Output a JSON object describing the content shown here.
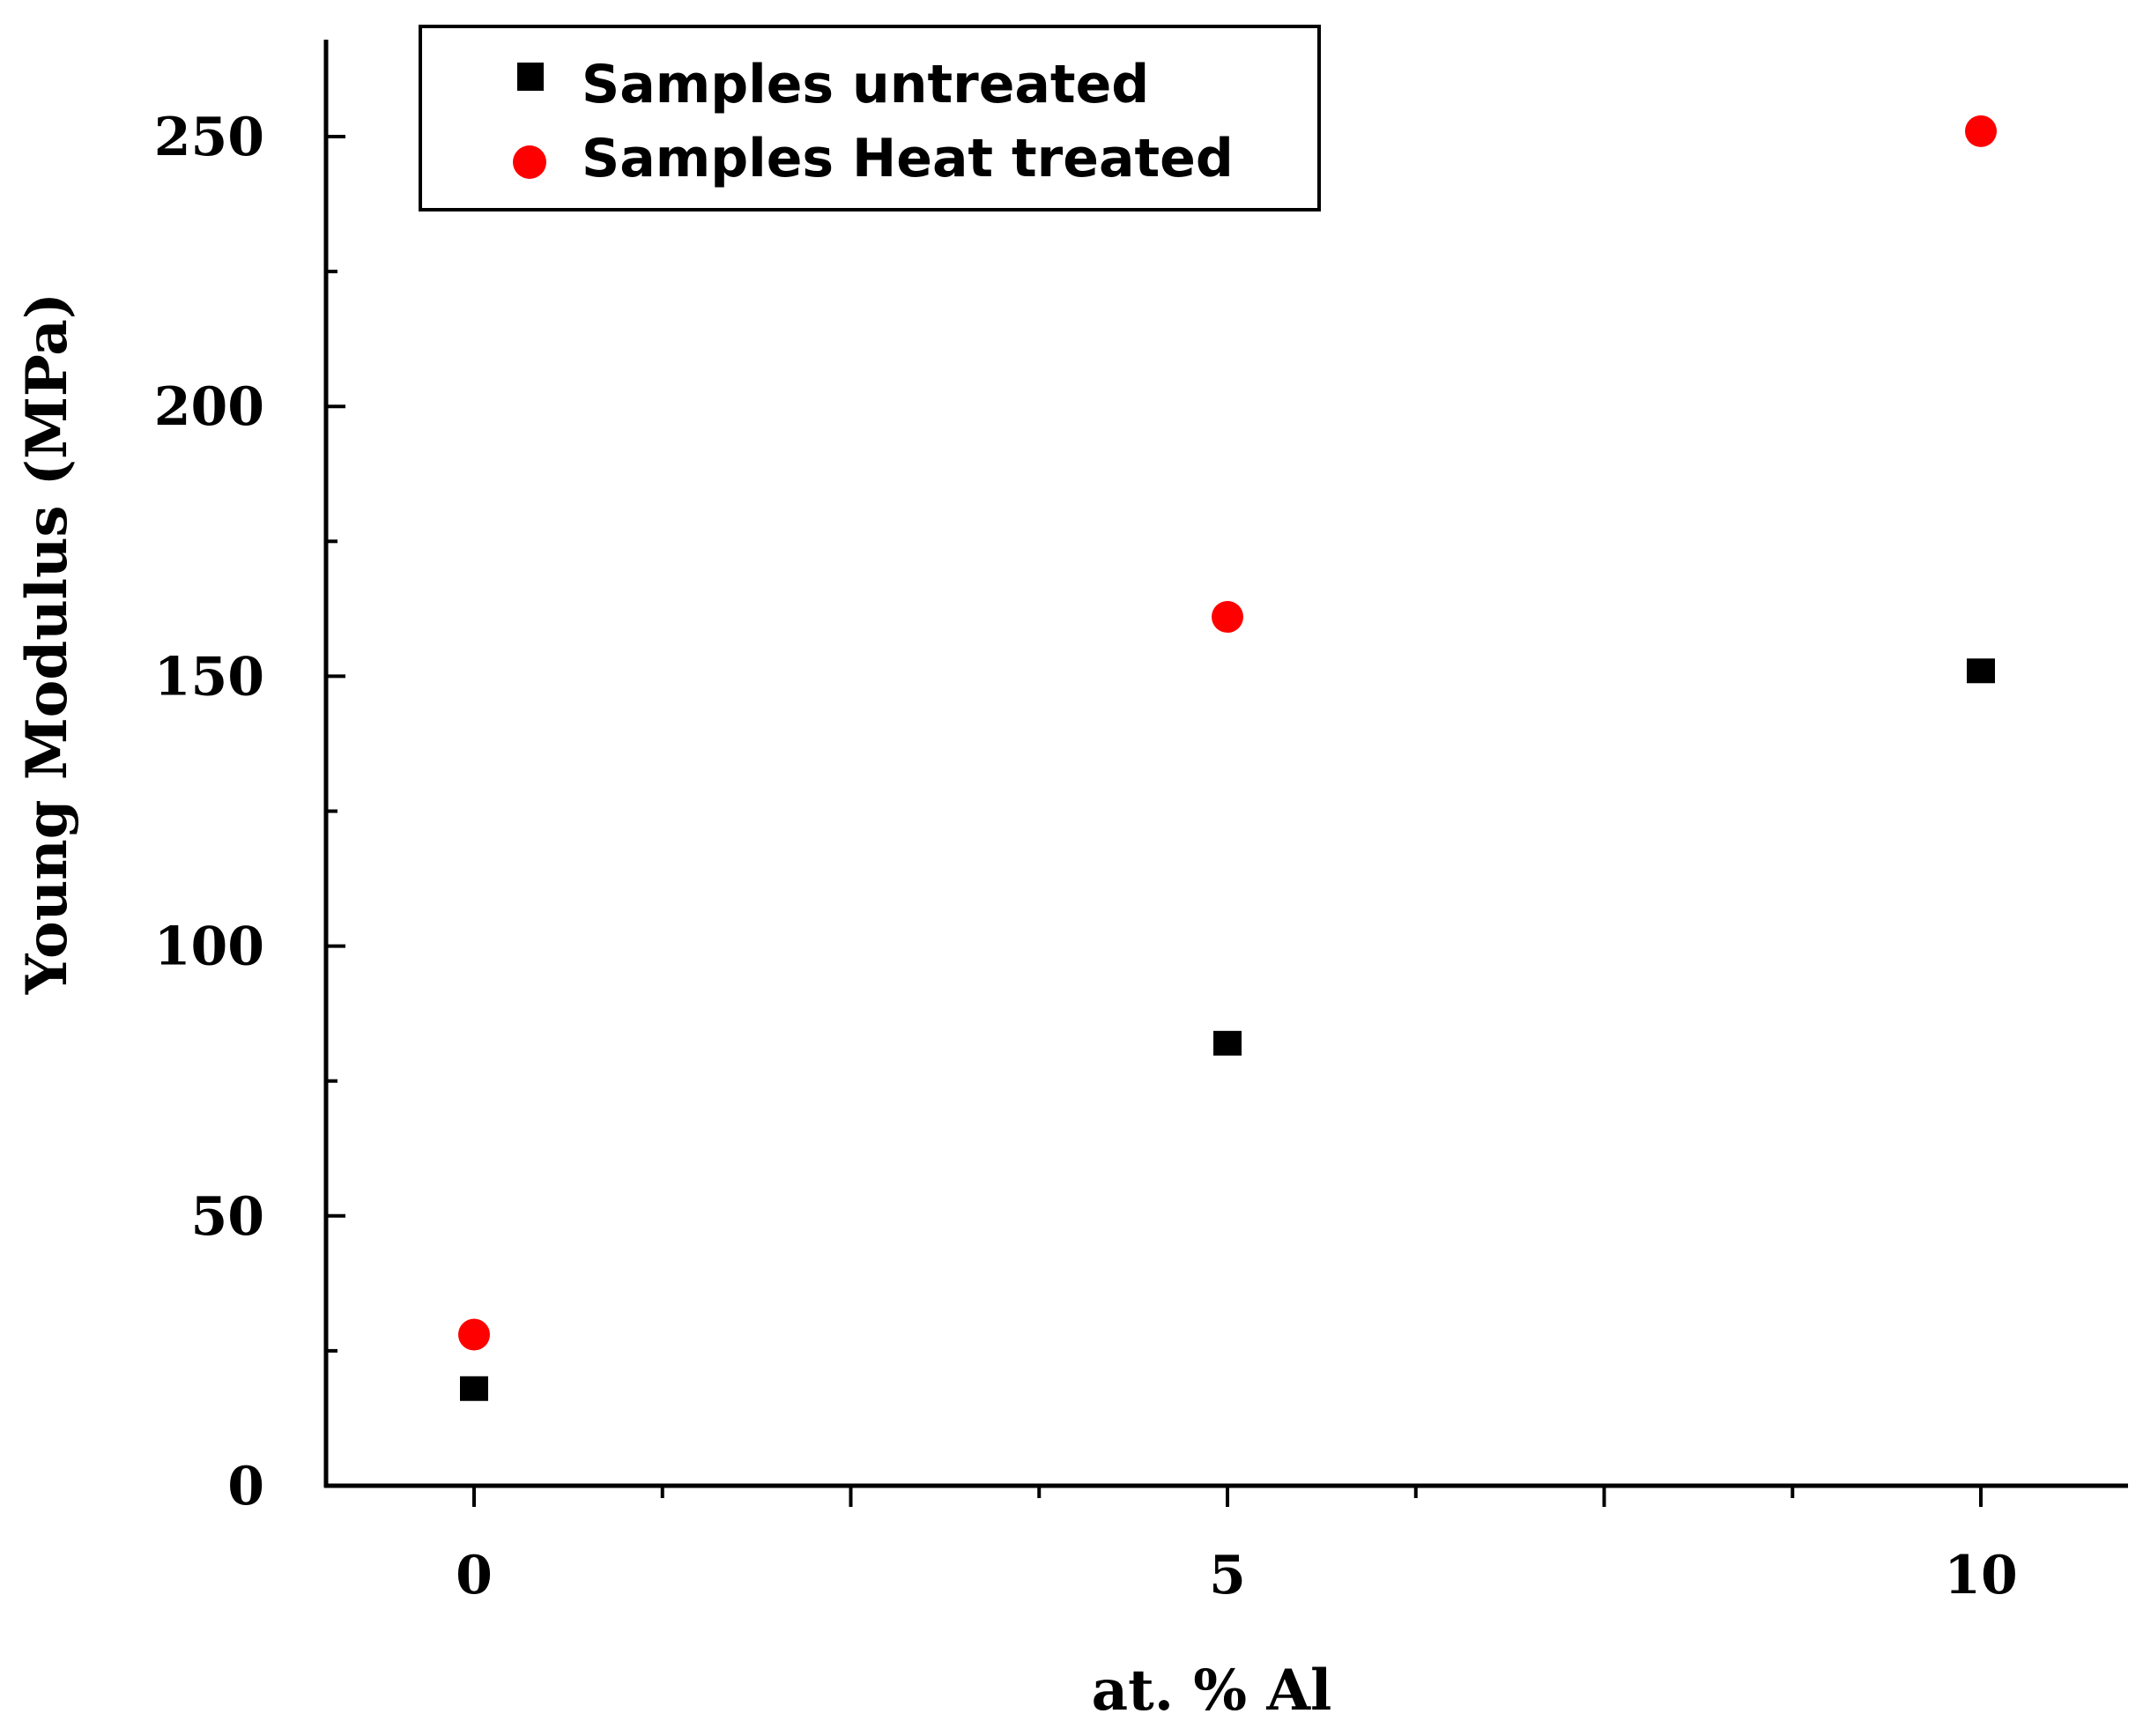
{
  "chart_data": {
    "type": "scatter",
    "xlabel": "at. % Al",
    "ylabel": "Young  Modulus  (MPa)",
    "xlim": [
      -2,
      19
    ],
    "ylim": [
      0,
      268
    ],
    "x_ticks": [
      0,
      5,
      10
    ],
    "x_tick_labels": [
      "0",
      "5",
      "10"
    ],
    "y_ticks": [
      0,
      50,
      100,
      150,
      200,
      250
    ],
    "y_tick_labels": [
      "0",
      "50",
      "100",
      "150",
      "200",
      "250"
    ],
    "grid": false,
    "legend_position": "top-left",
    "series": [
      {
        "name": "Samples untreated",
        "marker": "square",
        "color": "#000000",
        "x": [
          0,
          5,
          10
        ],
        "y": [
          18,
          82,
          151
        ]
      },
      {
        "name": "Samples Heat treated",
        "marker": "circle",
        "color": "#ff0000",
        "x": [
          0,
          5,
          10
        ],
        "y": [
          28,
          161,
          251
        ]
      }
    ]
  }
}
